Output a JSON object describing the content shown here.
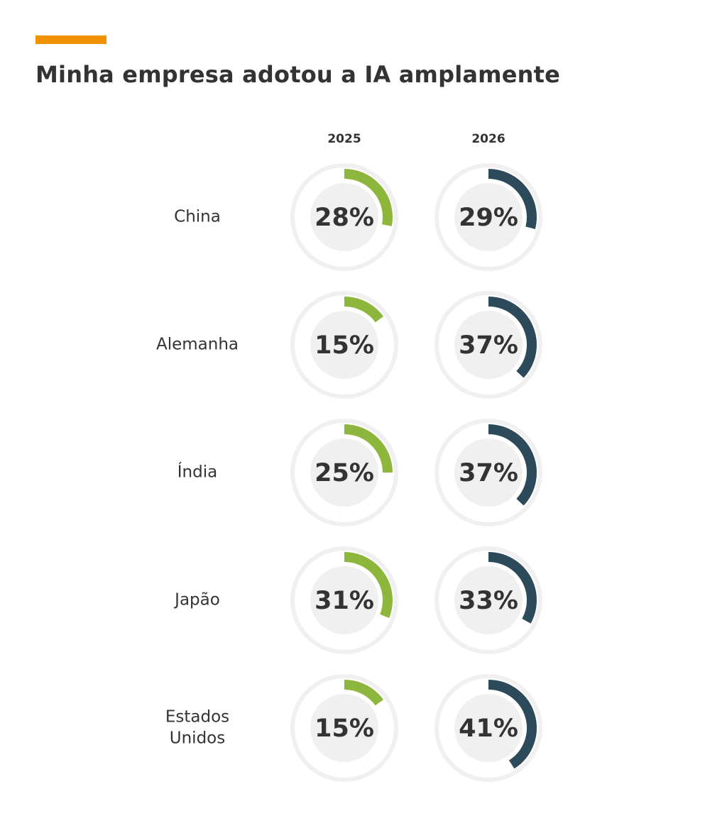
{
  "header": {
    "title": "Minha empresa adotou a IA amplamente"
  },
  "colors": {
    "accent": "#F39200",
    "series_2025": "#8DB63C",
    "series_2026": "#2D4A5B",
    "ring_track": "#F0F0F0",
    "inner_disc": "#F0F0F0",
    "text": "#333333"
  },
  "chart_data": {
    "type": "donut-grid",
    "title": "Minha empresa adotou a IA amplamente",
    "unit": "%",
    "series": [
      {
        "name": "2025",
        "values": [
          28,
          15,
          25,
          31,
          15
        ]
      },
      {
        "name": "2026",
        "values": [
          29,
          37,
          37,
          33,
          41
        ]
      }
    ],
    "categories": [
      {
        "label": "China",
        "lines": [
          "China"
        ]
      },
      {
        "label": "Alemanha",
        "lines": [
          "Alemanha"
        ]
      },
      {
        "label": "Índia",
        "lines": [
          "Índia"
        ]
      },
      {
        "label": "Japão",
        "lines": [
          "Japão"
        ]
      },
      {
        "label": "Estados Unidos",
        "lines": [
          "Estados",
          "Unidos"
        ]
      }
    ],
    "value_labels": [
      [
        "28%",
        "29%"
      ],
      [
        "15%",
        "37%"
      ],
      [
        "25%",
        "37%"
      ],
      [
        "31%",
        "33%"
      ],
      [
        "15%",
        "41%"
      ]
    ],
    "range": [
      0,
      100
    ]
  }
}
